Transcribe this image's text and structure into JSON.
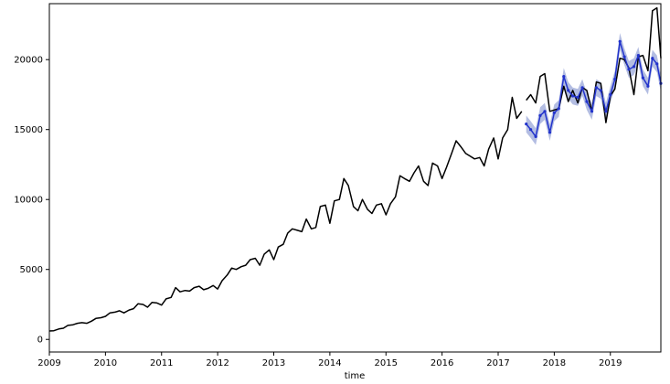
{
  "chart_data": {
    "type": "line",
    "title": "",
    "xlabel": "time",
    "ylabel": "",
    "xlim": [
      2009.0,
      2019.9
    ],
    "ylim": [
      -900,
      24000
    ],
    "grid": false,
    "legend": "none",
    "x_ticks": [
      "2009",
      "2010",
      "2011",
      "2012",
      "2013",
      "2014",
      "2015",
      "2016",
      "2017",
      "2018",
      "2019"
    ],
    "y_ticks": [
      0,
      5000,
      10000,
      15000,
      20000
    ],
    "colors": {
      "observed": "#000000",
      "forecast": "#2233cc",
      "forecast_band": "#9aa7d8"
    },
    "series": [
      {
        "key": "observed",
        "x": [
          2009.0,
          2009.08,
          2009.17,
          2009.25,
          2009.33,
          2009.42,
          2009.5,
          2009.58,
          2009.67,
          2009.75,
          2009.83,
          2009.92,
          2010.0,
          2010.08,
          2010.17,
          2010.25,
          2010.33,
          2010.42,
          2010.5,
          2010.58,
          2010.67,
          2010.75,
          2010.83,
          2010.92,
          2011.0,
          2011.08,
          2011.17,
          2011.25,
          2011.33,
          2011.42,
          2011.5,
          2011.58,
          2011.67,
          2011.75,
          2011.83,
          2011.92,
          2012.0,
          2012.08,
          2012.17,
          2012.25,
          2012.33,
          2012.42,
          2012.5,
          2012.58,
          2012.67,
          2012.75,
          2012.83,
          2012.92,
          2013.0,
          2013.08,
          2013.17,
          2013.25,
          2013.33,
          2013.42,
          2013.5,
          2013.58,
          2013.67,
          2013.75,
          2013.83,
          2013.92,
          2014.0,
          2014.08,
          2014.17,
          2014.25,
          2014.33,
          2014.42,
          2014.5,
          2014.58,
          2014.67,
          2014.75,
          2014.83,
          2014.92,
          2015.0,
          2015.08,
          2015.17,
          2015.25,
          2015.33,
          2015.42,
          2015.5,
          2015.58,
          2015.67,
          2015.75,
          2015.83,
          2015.92,
          2016.0,
          2016.08,
          2016.17,
          2016.25,
          2016.33,
          2016.42,
          2016.5,
          2016.58,
          2016.67,
          2016.75,
          2016.83,
          2016.92,
          2017.0,
          2017.08,
          2017.17,
          2017.25,
          2017.33,
          2017.42
        ],
        "values": [
          600,
          620,
          750,
          800,
          1000,
          1050,
          1150,
          1200,
          1150,
          1300,
          1500,
          1550,
          1650,
          1900,
          1950,
          2050,
          1900,
          2100,
          2200,
          2550,
          2500,
          2300,
          2650,
          2600,
          2450,
          2900,
          3000,
          3700,
          3400,
          3500,
          3450,
          3700,
          3800,
          3550,
          3650,
          3850,
          3600,
          4200,
          4600,
          5100,
          5000,
          5200,
          5300,
          5700,
          5800,
          5300,
          6100,
          6400,
          5700,
          6600,
          6800,
          7600,
          7900,
          7800,
          7700,
          8600,
          7900,
          8000,
          9500,
          9600,
          8300,
          9900,
          10000,
          11500,
          11000,
          9500,
          9200,
          10000,
          9300,
          9000,
          9600,
          9700,
          8900,
          9700,
          10200,
          11700,
          11500,
          11300,
          11900,
          12400,
          11300,
          11000,
          12600,
          12400,
          11500,
          12300,
          13300,
          14200,
          13800,
          13300,
          13100,
          12900,
          13000,
          12400,
          13600,
          14400,
          12900,
          14400,
          15000,
          17300,
          15800,
          16300
        ]
      },
      {
        "key": "observed",
        "x": [
          2017.5,
          2017.58,
          2017.67,
          2017.75,
          2017.83,
          2017.92,
          2018.0,
          2018.08,
          2018.17,
          2018.25,
          2018.33,
          2018.42,
          2018.5,
          2018.58,
          2018.67,
          2018.75,
          2018.83,
          2018.92,
          2019.0,
          2019.08,
          2019.17,
          2019.25,
          2019.33,
          2019.42,
          2019.5,
          2019.58,
          2019.67,
          2019.75,
          2019.83,
          2019.9
        ],
        "values": [
          17100,
          17500,
          16900,
          18800,
          19000,
          16300,
          16400,
          16500,
          18100,
          17000,
          17800,
          16900,
          18000,
          17800,
          16300,
          18400,
          18300,
          15500,
          17400,
          17900,
          20100,
          20000,
          19400,
          17500,
          20200,
          20300,
          19200,
          23500,
          23700,
          20100
        ]
      },
      {
        "key": "forecast",
        "x": [
          2017.5,
          2017.58,
          2017.67,
          2017.75,
          2017.83,
          2017.92,
          2018.0,
          2018.08,
          2018.17,
          2018.25,
          2018.33,
          2018.42,
          2018.5,
          2018.58,
          2018.67,
          2018.75,
          2018.83,
          2018.92,
          2019.0,
          2019.08,
          2019.17,
          2019.25,
          2019.33,
          2019.42,
          2019.5,
          2019.58,
          2019.67,
          2019.75,
          2019.83,
          2019.9
        ],
        "values": [
          15400,
          15000,
          14500,
          16000,
          16300,
          14800,
          16200,
          16500,
          18800,
          17800,
          17400,
          17300,
          18000,
          17000,
          16300,
          18000,
          17800,
          16300,
          17500,
          18600,
          21300,
          20200,
          19300,
          19500,
          20300,
          18700,
          18100,
          20100,
          19700,
          18300
        ],
        "band": 600
      }
    ]
  }
}
